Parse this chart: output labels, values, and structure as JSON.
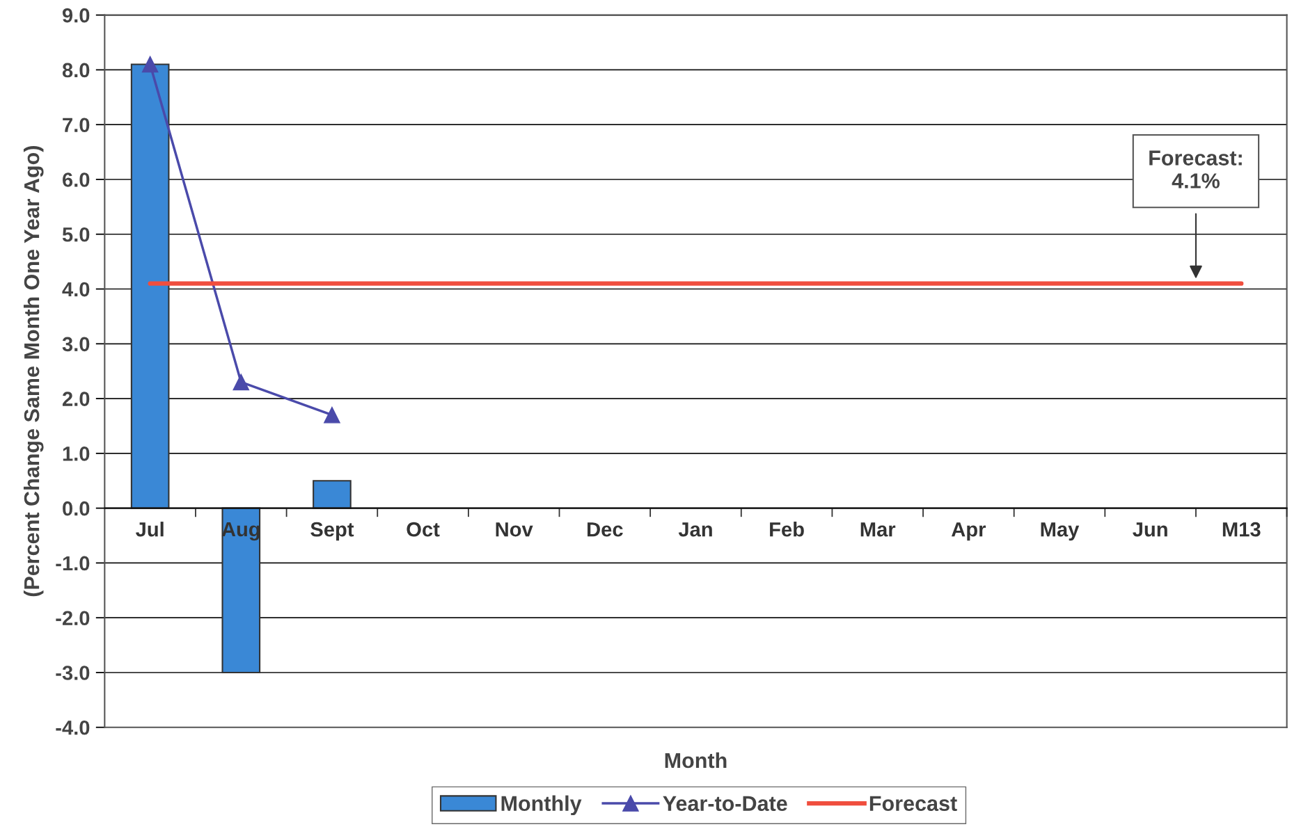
{
  "chart_data": {
    "type": "bar",
    "xlabel": "Month",
    "ylabel": "(Percent Change Same Month One Year Ago)",
    "categories": [
      "Jul",
      "Aug",
      "Sept",
      "Oct",
      "Nov",
      "Dec",
      "Jan",
      "Feb",
      "Mar",
      "Apr",
      "May",
      "Jun",
      "M13"
    ],
    "series": [
      {
        "name": "Monthly",
        "color": "#3a88d6",
        "values": [
          8.1,
          -3.0,
          0.5,
          null,
          null,
          null,
          null,
          null,
          null,
          null,
          null,
          null,
          null
        ]
      },
      {
        "name": "Year-to-Date",
        "type": "line",
        "color": "#4a4aaa",
        "marker": "triangle",
        "values": [
          8.1,
          2.3,
          1.7,
          null,
          null,
          null,
          null,
          null,
          null,
          null,
          null,
          null,
          null
        ]
      },
      {
        "name": "Forecast",
        "type": "line",
        "color": "#f04e3e",
        "marker": "none",
        "values": [
          4.1,
          4.1,
          4.1,
          4.1,
          4.1,
          4.1,
          4.1,
          4.1,
          4.1,
          4.1,
          4.1,
          4.1,
          4.1
        ]
      }
    ],
    "ylim": [
      -4,
      9
    ],
    "yticks": [
      {
        "value": -4,
        "label": "-4.0"
      },
      {
        "value": -3,
        "label": "-3.0"
      },
      {
        "value": -2,
        "label": "-2.0"
      },
      {
        "value": -1,
        "label": "-1.0"
      },
      {
        "value": 0,
        "label": "0.0"
      },
      {
        "value": 1,
        "label": "1.0"
      },
      {
        "value": 2,
        "label": "2.0"
      },
      {
        "value": 3,
        "label": "3.0"
      },
      {
        "value": 4,
        "label": "4.0"
      },
      {
        "value": 5,
        "label": "5.0"
      },
      {
        "value": 6,
        "label": "6.0"
      },
      {
        "value": 7,
        "label": "7.0"
      },
      {
        "value": 8,
        "label": "8.0"
      },
      {
        "value": 9,
        "label": "9.0"
      }
    ],
    "grid": "y",
    "legend": "bottom",
    "annotations": [
      "Forecast:\n4.1%"
    ]
  }
}
